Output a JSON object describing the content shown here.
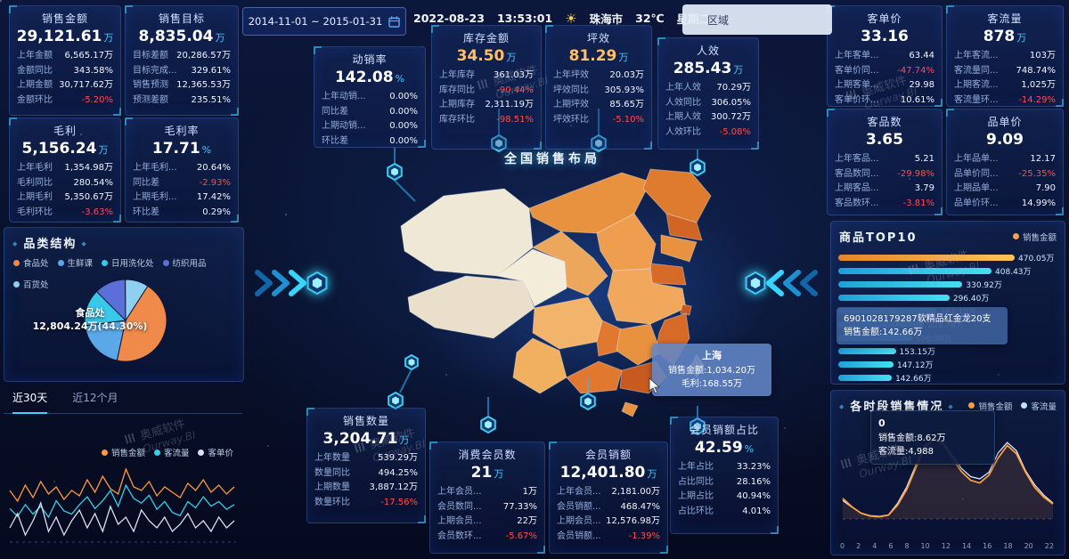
{
  "topbar": {
    "date_range": "2014-11-01  ~  2015-01-31",
    "date": "2022-08-23",
    "time": "13:53:01",
    "weather_icon": "☀",
    "city": "珠海市",
    "temp": "32℃",
    "weekday": "星期二",
    "region_label": "区域"
  },
  "watermark": {
    "cn": "奥威软件",
    "en": "Ourway.BI"
  },
  "map": {
    "title": "全国销售布局",
    "tooltip": {
      "region": "上海",
      "line1": "销售金额:1,034.20万",
      "line2": "毛利:168.55万"
    }
  },
  "kpis": {
    "sales_amount": {
      "title": "销售金额",
      "value": "29,121.61",
      "unit": "万",
      "rows": [
        {
          "label": "上年金额",
          "value": "6,565.17万"
        },
        {
          "label": "金额同比",
          "value": "343.58%"
        },
        {
          "label": "上期金额",
          "value": "30,717.62万"
        },
        {
          "label": "金额环比",
          "value": "-5.20%"
        }
      ]
    },
    "sales_target": {
      "title": "销售目标",
      "value": "8,835.04",
      "unit": "万",
      "rows": [
        {
          "label": "目标差额",
          "value": "20,286.57万"
        },
        {
          "label": "目标完成...",
          "value": "329.61%"
        },
        {
          "label": "销售预测",
          "value": "12,365.53万"
        },
        {
          "label": "预测差额",
          "value": "235.51%"
        }
      ]
    },
    "gross_profit": {
      "title": "毛利",
      "value": "5,156.24",
      "unit": "万",
      "rows": [
        {
          "label": "上年毛利",
          "value": "1,354.98万"
        },
        {
          "label": "毛利同比",
          "value": "280.54%"
        },
        {
          "label": "上期毛利",
          "value": "5,350.67万"
        },
        {
          "label": "毛利环比",
          "value": "-3.63%"
        }
      ]
    },
    "gross_margin": {
      "title": "毛利率",
      "value": "17.71",
      "unit": "%",
      "rows": [
        {
          "label": "上年毛利...",
          "value": "20.64%"
        },
        {
          "label": "同比差",
          "value": "-2.93%"
        },
        {
          "label": "上期毛利...",
          "value": "17.42%"
        },
        {
          "label": "环比差",
          "value": "0.29%"
        }
      ]
    },
    "sell_through": {
      "title": "动销率",
      "value": "142.08",
      "unit": "%",
      "rows": [
        {
          "label": "上年动销...",
          "value": "0.00%"
        },
        {
          "label": "同比差",
          "value": "0.00%"
        },
        {
          "label": "上期动销...",
          "value": "0.00%"
        },
        {
          "label": "环比差",
          "value": "0.00%"
        }
      ]
    },
    "stock_amount": {
      "title": "库存金额",
      "value": "34.50",
      "unit": "万",
      "value_color": "#ffc069",
      "rows": [
        {
          "label": "上年库存",
          "value": "361.03万"
        },
        {
          "label": "库存同比",
          "value": "-90.44%"
        },
        {
          "label": "上期库存",
          "value": "2,311.19万"
        },
        {
          "label": "库存环比",
          "value": "-98.51%"
        }
      ]
    },
    "sales_per_area": {
      "title": "坪效",
      "value": "81.29",
      "unit": "万",
      "value_color": "#ffc069",
      "rows": [
        {
          "label": "上年坪效",
          "value": "20.03万"
        },
        {
          "label": "坪效同比",
          "value": "305.93%"
        },
        {
          "label": "上期坪效",
          "value": "85.65万"
        },
        {
          "label": "坪效环比",
          "value": "-5.10%"
        }
      ]
    },
    "sales_per_person": {
      "title": "人效",
      "value": "285.43",
      "unit": "万",
      "rows": [
        {
          "label": "上年人效",
          "value": "70.29万"
        },
        {
          "label": "人效同比",
          "value": "306.05%"
        },
        {
          "label": "上期人效",
          "value": "300.72万"
        },
        {
          "label": "人效环比",
          "value": "-5.08%"
        }
      ]
    },
    "price_per_customer": {
      "title": "客单价",
      "value": "33.16",
      "unit": "",
      "rows": [
        {
          "label": "上年客单...",
          "value": "63.44"
        },
        {
          "label": "客单价同...",
          "value": "-47.74%"
        },
        {
          "label": "上期客单...",
          "value": "29.98"
        },
        {
          "label": "客单价环...",
          "value": "10.61%"
        }
      ]
    },
    "customer_traffic": {
      "title": "客流量",
      "value": "878",
      "unit": "万",
      "rows": [
        {
          "label": "上年客流...",
          "value": "103万"
        },
        {
          "label": "客流量同...",
          "value": "748.74%"
        },
        {
          "label": "上期客流...",
          "value": "1,025万"
        },
        {
          "label": "客流量环...",
          "value": "-14.29%"
        }
      ]
    },
    "items_per_customer": {
      "title": "客品数",
      "value": "3.65",
      "unit": "",
      "rows": [
        {
          "label": "上年客品...",
          "value": "5.21"
        },
        {
          "label": "客品数同...",
          "value": "-29.98%"
        },
        {
          "label": "上期客品...",
          "value": "3.79"
        },
        {
          "label": "客品数环...",
          "value": "-3.81%"
        }
      ]
    },
    "price_per_item": {
      "title": "品单价",
      "value": "9.09",
      "unit": "",
      "rows": [
        {
          "label": "上年品单...",
          "value": "12.17"
        },
        {
          "label": "品单价同...",
          "value": "-25.35%"
        },
        {
          "label": "上期品单...",
          "value": "7.90"
        },
        {
          "label": "品单价环...",
          "value": "14.99%"
        }
      ]
    },
    "sales_quantity": {
      "title": "销售数量",
      "value": "3,204.71",
      "unit": "万",
      "rows": [
        {
          "label": "上年数量",
          "value": "539.29万"
        },
        {
          "label": "数量同比",
          "value": "494.25%"
        },
        {
          "label": "上期数量",
          "value": "3,887.12万"
        },
        {
          "label": "数量环比",
          "value": "-17.56%"
        }
      ]
    },
    "consuming_members": {
      "title": "消费会员数",
      "value": "21",
      "unit": "万",
      "rows": [
        {
          "label": "上年会员...",
          "value": "1万"
        },
        {
          "label": "会员数同...",
          "value": "77.33%"
        },
        {
          "label": "上期会员...",
          "value": "22万"
        },
        {
          "label": "会员数环...",
          "value": "-5.67%"
        }
      ]
    },
    "member_sales": {
      "title": "会员销额",
      "value": "12,401.80",
      "unit": "万",
      "rows": [
        {
          "label": "上年会员...",
          "value": "2,181.00万"
        },
        {
          "label": "会员销额...",
          "value": "468.47%"
        },
        {
          "label": "上期会员...",
          "value": "12,576.98万"
        },
        {
          "label": "会员销额...",
          "value": "-1.39%"
        }
      ]
    },
    "member_share": {
      "title": "会员销额占比",
      "value": "42.59",
      "unit": "%",
      "rows": [
        {
          "label": "上年占比",
          "value": "33.23%"
        },
        {
          "label": "占比同比",
          "value": "28.16%"
        },
        {
          "label": "上期占比",
          "value": "40.94%"
        },
        {
          "label": "占比环比",
          "value": "4.01%"
        }
      ]
    }
  },
  "category_panel": {
    "title": "品类结构",
    "legend": [
      {
        "label": "食品处",
        "color": "#f08a4b"
      },
      {
        "label": "生鲜课",
        "color": "#5aa8e8"
      },
      {
        "label": "日用洗化处",
        "color": "#38c8e8"
      },
      {
        "label": "纺织用品",
        "color": "#5b6fd8"
      },
      {
        "label": "百货处",
        "color": "#8fd0f0"
      }
    ],
    "pie_label_line1": "食品处",
    "pie_label_line2": "12,804.24万(44.30%)"
  },
  "trend_panel": {
    "tabs": [
      "近30天",
      "近12个月"
    ],
    "legend": [
      {
        "label": "销售金额",
        "color": "#ff9a3c"
      },
      {
        "label": "客流量",
        "color": "#35d0e8"
      },
      {
        "label": "客单价",
        "color": "#d8e2f0"
      }
    ]
  },
  "top10_panel": {
    "title": "商品TOP10",
    "legend": [
      {
        "label": "销售金额",
        "color": "#f5a34a"
      }
    ],
    "tooltip": {
      "line1": "6901028179287软精品红金龙20支",
      "line2": "销售金额:142.66万"
    }
  },
  "hourly_panel": {
    "title": "各时段销售情况",
    "legend": [
      {
        "label": "销售金额",
        "color": "#ffa040"
      },
      {
        "label": "客流量",
        "color": "#bfe3ff"
      }
    ],
    "tooltip": {
      "line1": "0",
      "line2": "销售金额:8.62万",
      "line3": "客流量:4,988"
    }
  },
  "chart_data": [
    {
      "id": "category_pie",
      "type": "pie",
      "title": "品类结构",
      "labels": [
        "食品处",
        "生鲜课",
        "日用洗化处",
        "纺织用品",
        "百货处"
      ],
      "values_pct": [
        44.3,
        19.6,
        14.5,
        12.4,
        9.2
      ],
      "highlight": {
        "label": "食品处",
        "value": "12,804.24万",
        "share": "44.30%"
      },
      "colors": [
        "#f08a4b",
        "#5aa8e8",
        "#38c8e8",
        "#5b6fd8",
        "#8fd0f0"
      ],
      "legend_position": "top"
    },
    {
      "id": "trend_30d",
      "type": "line",
      "title": "近30天",
      "series": [
        {
          "name": "销售金额",
          "color": "#ff9a3c",
          "values": [
            150,
            120,
            165,
            130,
            175,
            140,
            160,
            125,
            150,
            135,
            180,
            145,
            190,
            155,
            140,
            210,
            160,
            150,
            175,
            135,
            160,
            145,
            130,
            170,
            150,
            180,
            145,
            165,
            140,
            160
          ]
        },
        {
          "name": "客流量",
          "color": "#35d0e8",
          "values": [
            95,
            85,
            100,
            88,
            98,
            84,
            105,
            92,
            88,
            100,
            110,
            95,
            105,
            118,
            98,
            125,
            108,
            102,
            112,
            94,
            104,
            90,
            86,
            104,
            96,
            110,
            98,
            104,
            94,
            100
          ]
        },
        {
          "name": "客单价",
          "color": "#d8e2f0",
          "values": [
            42,
            46,
            40,
            44,
            49,
            41,
            45,
            40,
            44,
            47,
            42,
            46,
            41,
            48,
            43,
            45,
            41,
            47,
            44,
            42,
            45,
            41,
            43,
            46,
            42,
            44,
            41,
            45,
            42,
            44
          ]
        }
      ],
      "grid": "dashed-baseline",
      "legend_position": "top-right"
    },
    {
      "id": "top10",
      "type": "bar",
      "orientation": "horizontal",
      "title": "商品TOP10",
      "series_name": "销售金额",
      "values": [
        470.05,
        408.43,
        330.92,
        296.4,
        262.1,
        228.7,
        196.3,
        153.15,
        147.12,
        142.66
      ],
      "labels": [
        "470.05万",
        "408.43万",
        "330.92万",
        "296.40万",
        "262.10万",
        "228.70万",
        "196.30万",
        "153.15万",
        "147.12万",
        "142.66万"
      ],
      "xlim": [
        0,
        480
      ],
      "tooltip_item": {
        "name": "6901028179287软精品红金龙20支",
        "value": "142.66万"
      }
    },
    {
      "id": "hourly",
      "type": "line",
      "title": "各时段销售情况",
      "x": [
        0,
        1,
        2,
        3,
        4,
        5,
        6,
        7,
        8,
        9,
        10,
        11,
        12,
        13,
        14,
        15,
        16,
        17,
        18,
        19,
        20,
        21,
        22,
        23
      ],
      "x_ticks": [
        "0",
        "2",
        "4",
        "6",
        "8",
        "10",
        "12",
        "14",
        "16",
        "18",
        "20",
        "22"
      ],
      "series": [
        {
          "name": "销售金额",
          "color": "#ffa040",
          "values": [
            8.62,
            5.1,
            2.4,
            1.2,
            0.9,
            1.6,
            5.8,
            12.4,
            21.5,
            29.8,
            33.6,
            31.2,
            25.4,
            19.8,
            16.2,
            15.1,
            18.4,
            25.6,
            30.8,
            27.4,
            19.6,
            13.2,
            9.1,
            6.3
          ]
        },
        {
          "name": "客流量",
          "color": "#dfe9ff",
          "values": [
            4988,
            3200,
            1600,
            900,
            700,
            1100,
            4200,
            8600,
            14500,
            19800,
            21600,
            20400,
            17200,
            13600,
            11400,
            10800,
            12600,
            17800,
            20600,
            18400,
            13000,
            9200,
            6400,
            4300
          ]
        }
      ],
      "tooltip_point": {
        "x": "0",
        "销售金额": "8.62万",
        "客流量": "4,988"
      },
      "legend_position": "top-right"
    }
  ]
}
